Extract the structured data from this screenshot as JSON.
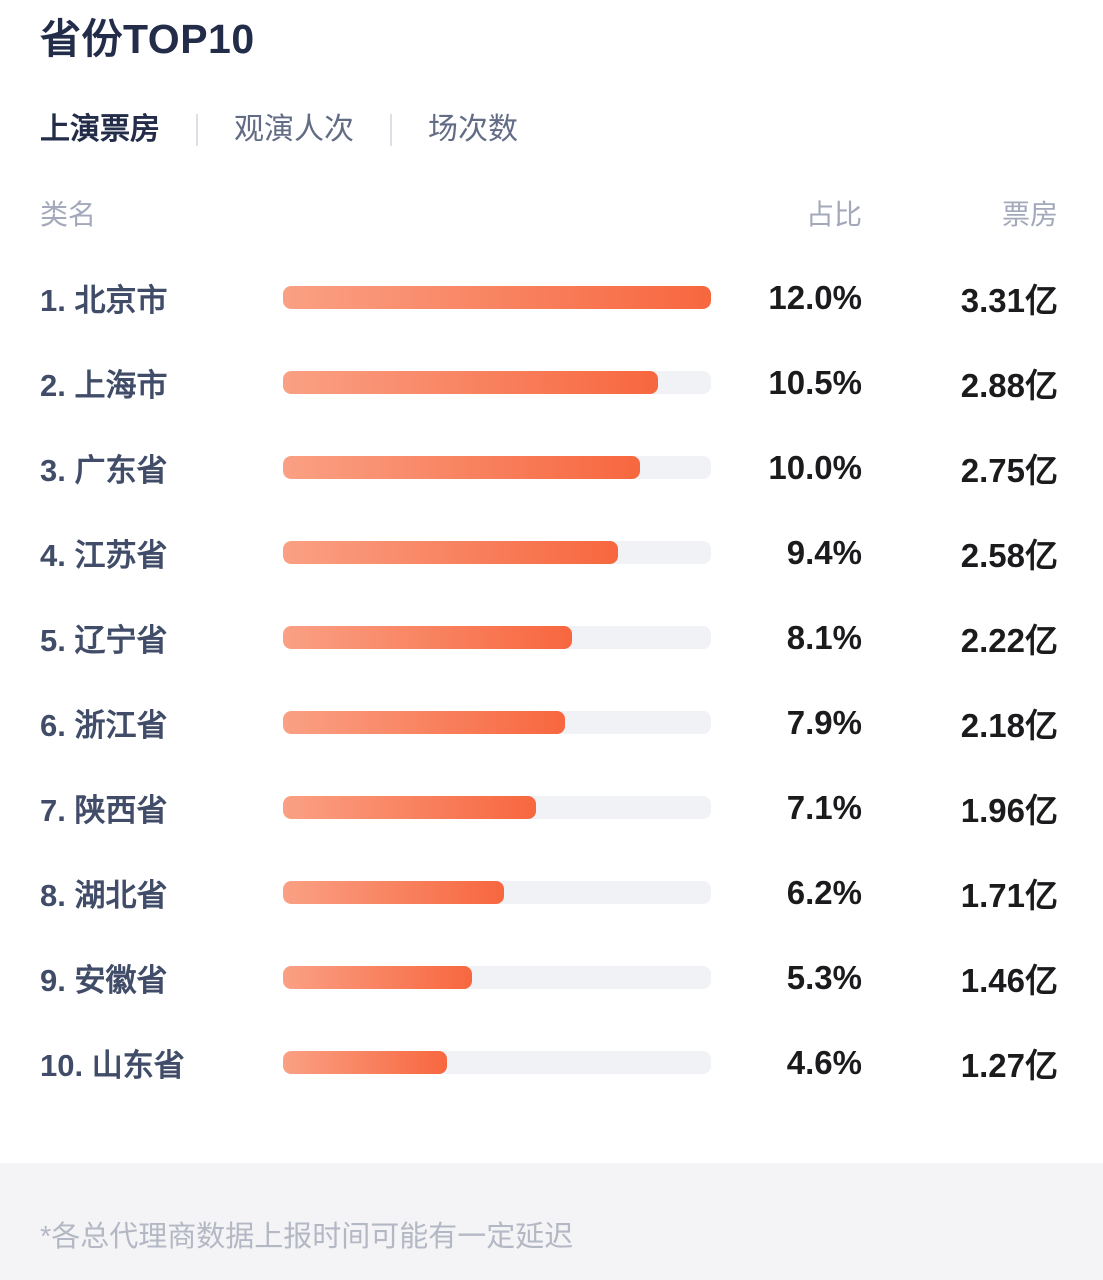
{
  "header": {
    "title": "省份TOP10"
  },
  "tabs": [
    {
      "label": "上演票房",
      "active": true
    },
    {
      "label": "观演人次",
      "active": false
    },
    {
      "label": "场次数",
      "active": false
    }
  ],
  "columns": {
    "name": "类名",
    "share": "占比",
    "value": "票房"
  },
  "rows": [
    {
      "label": "1. 北京市",
      "share": "12.0%",
      "share_pct": 12.0,
      "value": "3.31亿"
    },
    {
      "label": "2. 上海市",
      "share": "10.5%",
      "share_pct": 10.5,
      "value": "2.88亿"
    },
    {
      "label": "3. 广东省",
      "share": "10.0%",
      "share_pct": 10.0,
      "value": "2.75亿"
    },
    {
      "label": "4. 江苏省",
      "share": "9.4%",
      "share_pct": 9.4,
      "value": "2.58亿"
    },
    {
      "label": "5. 辽宁省",
      "share": "8.1%",
      "share_pct": 8.1,
      "value": "2.22亿"
    },
    {
      "label": "6. 浙江省",
      "share": "7.9%",
      "share_pct": 7.9,
      "value": "2.18亿"
    },
    {
      "label": "7. 陕西省",
      "share": "7.1%",
      "share_pct": 7.1,
      "value": "1.96亿"
    },
    {
      "label": "8. 湖北省",
      "share": "6.2%",
      "share_pct": 6.2,
      "value": "1.71亿"
    },
    {
      "label": "9. 安徽省",
      "share": "5.3%",
      "share_pct": 5.3,
      "value": "1.46亿"
    },
    {
      "label": "10. 山东省",
      "share": "4.6%",
      "share_pct": 4.6,
      "value": "1.27亿"
    }
  ],
  "footer": {
    "note": "*各总代理商数据上报时间可能有一定延迟"
  },
  "colors": {
    "bar_gradient_start": "#FAA084",
    "bar_gradient_end": "#F7673F",
    "bar_track": "#F1F2F5",
    "title_text": "#232D4A",
    "row_label_text": "#414D68",
    "number_text": "#1B1B1D",
    "muted_text": "#A3A9BA",
    "footer_bg": "#F4F4F6",
    "footer_text": "#B4B8C4"
  },
  "chart_data": {
    "type": "bar",
    "orientation": "horizontal",
    "title": "省份TOP10",
    "active_metric": "上演票房",
    "categories": [
      "北京市",
      "上海市",
      "广东省",
      "江苏省",
      "辽宁省",
      "浙江省",
      "陕西省",
      "湖北省",
      "安徽省",
      "山东省"
    ],
    "series": [
      {
        "name": "占比(%)",
        "values": [
          12.0,
          10.5,
          10.0,
          9.4,
          8.1,
          7.9,
          7.1,
          6.2,
          5.3,
          4.6
        ]
      },
      {
        "name": "票房(亿)",
        "values": [
          3.31,
          2.88,
          2.75,
          2.58,
          2.22,
          2.18,
          1.96,
          1.71,
          1.46,
          1.27
        ]
      }
    ],
    "xlim": [
      0,
      12.0
    ],
    "grid": false,
    "legend_position": "none",
    "note": "*各总代理商数据上报时间可能有一定延迟"
  }
}
